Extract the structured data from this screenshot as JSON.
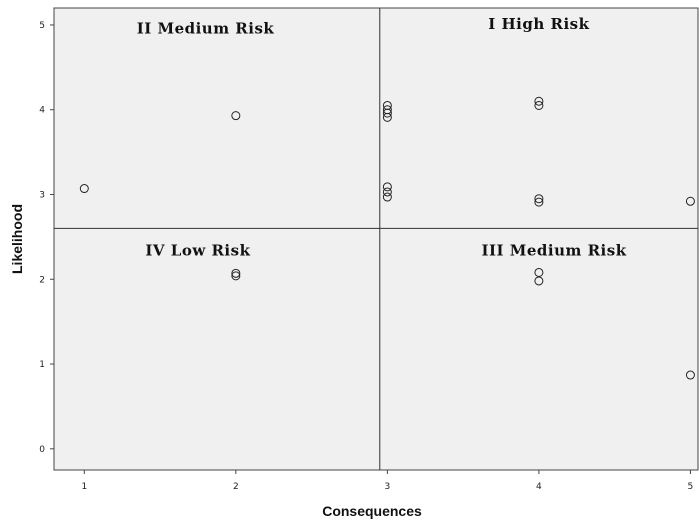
{
  "chart_data": {
    "type": "scatter",
    "xlabel": "Consequences",
    "ylabel": "Likelihood",
    "xlim": [
      0.8,
      5.05
    ],
    "ylim": [
      -0.25,
      5.2
    ],
    "x_ticks": [
      "1",
      "2",
      "3",
      "4",
      "5"
    ],
    "y_ticks": [
      "0",
      "1",
      "2",
      "3",
      "4",
      "5"
    ],
    "grid": false,
    "background": "#f0f0f0",
    "reference_lines": {
      "x": 2.95,
      "y": 2.6
    },
    "quadrants": [
      {
        "label": "II Medium Risk",
        "x": 1.8,
        "y": 4.9
      },
      {
        "label": "I High Risk",
        "x": 4.0,
        "y": 4.95
      },
      {
        "label": "IV Low Risk",
        "x": 1.75,
        "y": 2.28
      },
      {
        "label": "III Medium Risk",
        "x": 4.1,
        "y": 2.28
      }
    ],
    "points": [
      {
        "x": 1,
        "y": 3.07
      },
      {
        "x": 2,
        "y": 3.93
      },
      {
        "x": 2,
        "y": 2.07
      },
      {
        "x": 2,
        "y": 2.04
      },
      {
        "x": 3,
        "y": 4.05
      },
      {
        "x": 3,
        "y": 4.0
      },
      {
        "x": 3,
        "y": 3.96
      },
      {
        "x": 3,
        "y": 3.91
      },
      {
        "x": 3,
        "y": 3.09
      },
      {
        "x": 3,
        "y": 3.03
      },
      {
        "x": 3,
        "y": 2.97
      },
      {
        "x": 4,
        "y": 4.1
      },
      {
        "x": 4,
        "y": 4.05
      },
      {
        "x": 4,
        "y": 2.95
      },
      {
        "x": 4,
        "y": 2.91
      },
      {
        "x": 4,
        "y": 2.08
      },
      {
        "x": 4,
        "y": 1.98
      },
      {
        "x": 5,
        "y": 2.92
      },
      {
        "x": 5,
        "y": 0.87
      }
    ]
  }
}
